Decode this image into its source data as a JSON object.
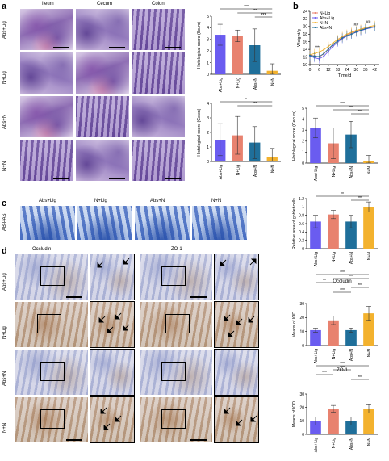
{
  "panels": {
    "a": {
      "letter": "a",
      "columns": [
        "Ileum",
        "Cecum",
        "Colon"
      ],
      "rows": [
        "Abs+Lig",
        "N+Lig",
        "Abs+N",
        "N+N"
      ]
    },
    "b": {
      "letter": "b"
    },
    "c": {
      "letter": "c",
      "columns": [
        "Abs+Lig",
        "N+Lig",
        "Abs+N",
        "N+N"
      ],
      "row_label": "AB-PAS"
    },
    "d": {
      "letter": "d",
      "columns": [
        "Occludin",
        "ZO-1"
      ],
      "rows": [
        "Abs+Lig",
        "N+Lig",
        "Abs+N",
        "N+N"
      ]
    }
  },
  "colors": {
    "abs_lig": "#6a5cf0",
    "n_lig": "#e8826f",
    "abs_n": "#1f6f9a",
    "n_n": "#f3b22e"
  },
  "chart_data": [
    {
      "id": "ileum",
      "type": "bar",
      "categories": [
        "Abs+Lig",
        "N+Lig",
        "Abs+N",
        "N+N"
      ],
      "values": [
        3.4,
        3.3,
        2.5,
        0.3
      ],
      "errors": [
        0.9,
        0.5,
        1.4,
        0.6
      ],
      "ylabel": "Histological score (Ileum)",
      "ylim": [
        0,
        5
      ],
      "yticks": [
        0,
        1,
        2,
        3,
        4,
        5
      ],
      "significance": [
        "***",
        "***",
        "***"
      ]
    },
    {
      "id": "weight",
      "type": "line",
      "x": [
        0,
        3,
        6,
        9,
        12,
        15,
        18,
        21,
        24,
        27,
        30,
        33,
        36,
        39,
        42
      ],
      "series": [
        {
          "name": "N+Lig",
          "values": [
            12.5,
            12.3,
            12.0,
            12.8,
            14.0,
            15.2,
            16.3,
            17.2,
            17.8,
            18.3,
            18.8,
            19.2,
            19.5,
            19.8,
            20.0
          ]
        },
        {
          "name": "Abs+Lig",
          "values": [
            12.3,
            11.8,
            11.5,
            12.2,
            13.5,
            14.8,
            15.9,
            16.8,
            17.5,
            18.0,
            18.5,
            18.9,
            19.3,
            19.6,
            19.9
          ]
        },
        {
          "name": "N+N",
          "values": [
            12.6,
            12.9,
            13.3,
            13.9,
            14.8,
            15.7,
            16.6,
            17.4,
            18.0,
            18.5,
            19.0,
            19.3,
            19.7,
            20.0,
            20.3
          ]
        },
        {
          "name": "Abs+N",
          "values": [
            12.4,
            12.2,
            12.1,
            12.9,
            14.1,
            15.3,
            16.2,
            17.0,
            17.6,
            18.0,
            18.6,
            19.0,
            19.4,
            19.7,
            19.9
          ]
        }
      ],
      "xlabel": "Time/d",
      "ylabel": "Weight/g",
      "xticks": [
        0,
        6,
        12,
        18,
        24,
        30,
        36,
        42
      ],
      "yticks": [
        10,
        12,
        14,
        16,
        18,
        20,
        22,
        24
      ],
      "ylim": [
        10,
        24
      ],
      "annotations": [
        "***",
        "##",
        "##"
      ]
    },
    {
      "id": "colon",
      "type": "bar",
      "categories": [
        "Abs+Lig",
        "N+Lig",
        "Abs+N",
        "N+N"
      ],
      "values": [
        1.5,
        1.8,
        1.3,
        0.3
      ],
      "errors": [
        1.1,
        1.3,
        1.1,
        0.6
      ],
      "ylabel": "Histological score (Colon)",
      "ylim": [
        0,
        4
      ],
      "yticks": [
        0,
        1,
        2,
        3,
        4
      ],
      "significance": [
        "*",
        "***"
      ]
    },
    {
      "id": "cecum",
      "type": "bar",
      "categories": [
        "Abs+Lig",
        "N+Lig",
        "Abs+N",
        "N+N"
      ],
      "values": [
        3.2,
        1.8,
        2.6,
        0.2
      ],
      "errors": [
        0.9,
        1.4,
        1.2,
        0.5
      ],
      "ylabel": "Histological score (Cecum)",
      "ylim": [
        0,
        5
      ],
      "yticks": [
        0,
        1,
        2,
        3,
        4,
        5
      ],
      "significance": [
        "***",
        "**",
        "***"
      ]
    },
    {
      "id": "goblet",
      "type": "bar",
      "categories": [
        "Abs+Lig",
        "N+Lig",
        "Abs+N",
        "N+N"
      ],
      "values": [
        0.65,
        0.82,
        0.65,
        1.0
      ],
      "errors": [
        0.15,
        0.1,
        0.15,
        0.12
      ],
      "ylabel": "Relative area of goblet cells",
      "ylim": [
        0,
        1.2
      ],
      "yticks": [
        0,
        0.2,
        0.4,
        0.6,
        0.8,
        1.0,
        1.2
      ],
      "significance": [
        "**",
        "**"
      ]
    },
    {
      "id": "occludin",
      "type": "bar",
      "title": "Occludin",
      "categories": [
        "Abs+Lig",
        "N+Lig",
        "Abs+N",
        "N+N"
      ],
      "values": [
        11,
        18,
        11,
        23
      ],
      "errors": [
        1.5,
        3,
        1.5,
        5
      ],
      "ylabel": "Means of IOD",
      "ylim": [
        0,
        30
      ],
      "yticks": [
        0,
        10,
        20,
        30
      ],
      "significance": [
        "***",
        "***",
        "**",
        "***",
        "***"
      ]
    },
    {
      "id": "zo1",
      "type": "bar",
      "title": "ZO-1",
      "categories": [
        "Abs+Lig",
        "N+Lig",
        "Abs+N",
        "N+N"
      ],
      "values": [
        10,
        19,
        10,
        19
      ],
      "errors": [
        3,
        2.5,
        3,
        3
      ],
      "ylabel": "Means of IOD",
      "ylim": [
        0,
        30
      ],
      "yticks": [
        0,
        10,
        20,
        30
      ],
      "significance": [
        "***",
        "***",
        "***",
        "***"
      ]
    }
  ]
}
